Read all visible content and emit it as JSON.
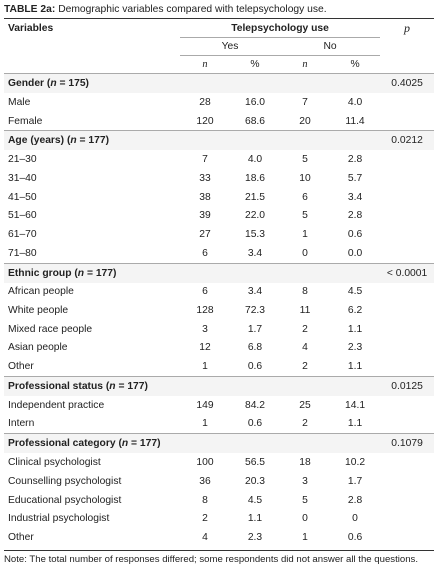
{
  "title": {
    "label": "TABLE 2a:",
    "text": "Demographic variables compared with telepsychology use."
  },
  "header": {
    "variables": "Variables",
    "group": "Telepsychology use",
    "p": "p",
    "yes": "Yes",
    "no": "No",
    "n1": "n",
    "pct1": "%",
    "n2": "n",
    "pct2": "%"
  },
  "sections": [
    {
      "pre": "Gender (",
      "n": "n",
      "post": " = 175)",
      "p": "0.4025",
      "rows": [
        [
          "Male",
          "28",
          "16.0",
          "7",
          "4.0"
        ],
        [
          "Female",
          "120",
          "68.6",
          "20",
          "11.4"
        ]
      ]
    },
    {
      "pre": "Age (years) (",
      "n": "n",
      "post": " = 177)",
      "p": "0.0212",
      "rows": [
        [
          "21–30",
          "7",
          "4.0",
          "5",
          "2.8"
        ],
        [
          "31–40",
          "33",
          "18.6",
          "10",
          "5.7"
        ],
        [
          "41–50",
          "38",
          "21.5",
          "6",
          "3.4"
        ],
        [
          "51–60",
          "39",
          "22.0",
          "5",
          "2.8"
        ],
        [
          "61–70",
          "27",
          "15.3",
          "1",
          "0.6"
        ],
        [
          "71–80",
          "6",
          "3.4",
          "0",
          "0.0"
        ]
      ]
    },
    {
      "pre": "Ethnic group (",
      "n": "n",
      "post": " = 177)",
      "p": "< 0.0001",
      "rows": [
        [
          "African people",
          "6",
          "3.4",
          "8",
          "4.5"
        ],
        [
          "White people",
          "128",
          "72.3",
          "11",
          "6.2"
        ],
        [
          "Mixed race people",
          "3",
          "1.7",
          "2",
          "1.1"
        ],
        [
          "Asian people",
          "12",
          "6.8",
          "4",
          "2.3"
        ],
        [
          "Other",
          "1",
          "0.6",
          "2",
          "1.1"
        ]
      ]
    },
    {
      "pre": "Professional status (",
      "n": "n",
      "post": " = 177)",
      "p": "0.0125",
      "rows": [
        [
          "Independent practice",
          "149",
          "84.2",
          "25",
          "14.1"
        ],
        [
          "Intern",
          "1",
          "0.6",
          "2",
          "1.1"
        ]
      ]
    },
    {
      "pre": "Professional category (",
      "n": "n",
      "post": " = 177)",
      "p": "0.1079",
      "rows": [
        [
          "Clinical psychologist",
          "100",
          "56.5",
          "18",
          "10.2"
        ],
        [
          "Counselling psychologist",
          "36",
          "20.3",
          "3",
          "1.7"
        ],
        [
          "Educational psychologist",
          "8",
          "4.5",
          "5",
          "2.8"
        ],
        [
          "Industrial psychologist",
          "2",
          "1.1",
          "0",
          "0"
        ],
        [
          "Other",
          "4",
          "2.3",
          "1",
          "0.6"
        ]
      ]
    }
  ],
  "note": "Note: The total number of responses differed; some respondents did not answer all the questions."
}
